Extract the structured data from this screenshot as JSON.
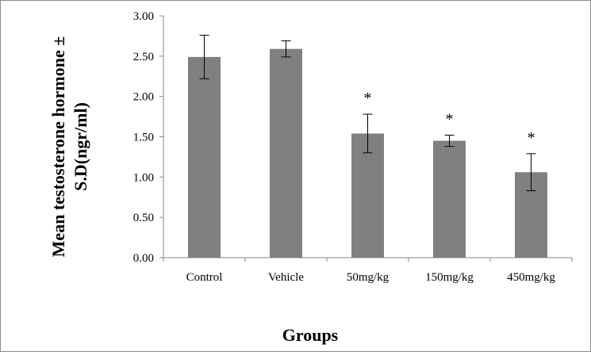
{
  "chart_data": {
    "type": "bar",
    "title": "",
    "xlabel": "Groups",
    "ylabel_lines": [
      "Mean testosterone hormone ±",
      "S.D(ngr/ml)"
    ],
    "categories": [
      "Control",
      "Vehicle",
      "50mg/kg",
      "150mg/kg",
      "450mg/kg"
    ],
    "values": [
      2.49,
      2.59,
      1.54,
      1.45,
      1.06
    ],
    "errors": [
      0.27,
      0.1,
      0.24,
      0.07,
      0.23
    ],
    "significance": [
      "",
      "",
      "*",
      "*",
      "*"
    ],
    "ylim": [
      0,
      3
    ],
    "yticks": [
      "0.00",
      "0.50",
      "1.00",
      "1.50",
      "2.00",
      "2.50",
      "3.00"
    ],
    "ytick_values": [
      0,
      0.5,
      1,
      1.5,
      2,
      2.5,
      3
    ],
    "grid": false,
    "bar_color": "#808080",
    "axis_color": "#868686"
  }
}
